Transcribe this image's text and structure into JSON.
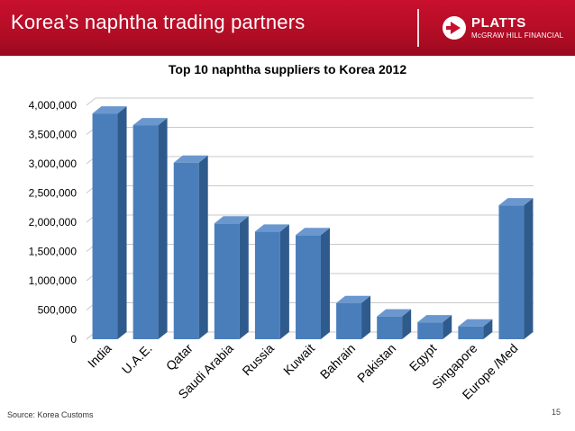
{
  "header": {
    "title": "Korea’s naphtha trading partners",
    "logo_word": "PLATTS",
    "logo_sub": "McGRAW HILL FINANCIAL",
    "brand_color": "#c8102e"
  },
  "chart_data": {
    "type": "bar",
    "title": "Top 10 naphtha suppliers to Korea 2012",
    "xlabel": "",
    "ylabel": "",
    "categories": [
      "India",
      "U.A.E.",
      "Qatar",
      "Saudi Arabia",
      "Russia",
      "Kuwait",
      "Bahrain",
      "Pakistan",
      "Egypt",
      "Singapore",
      "Europe /Med"
    ],
    "values": [
      3860000,
      3660000,
      3020000,
      1980000,
      1840000,
      1780000,
      620000,
      390000,
      290000,
      220000,
      2290000
    ],
    "ylim": [
      0,
      4000000
    ],
    "yticks": [
      0,
      500000,
      1000000,
      1500000,
      2000000,
      2500000,
      3000000,
      3500000,
      4000000
    ],
    "ytick_labels": [
      "0",
      "500,000",
      "1,000,000",
      "1,500,000",
      "2,000,000",
      "2,500,000",
      "3,000,000",
      "3,500,000",
      "4,000,000"
    ],
    "grid": true,
    "legend": "none",
    "bar_color": "#4a7ebb"
  },
  "footer": {
    "source": "Source: Korea Customs",
    "page_number": "15"
  }
}
